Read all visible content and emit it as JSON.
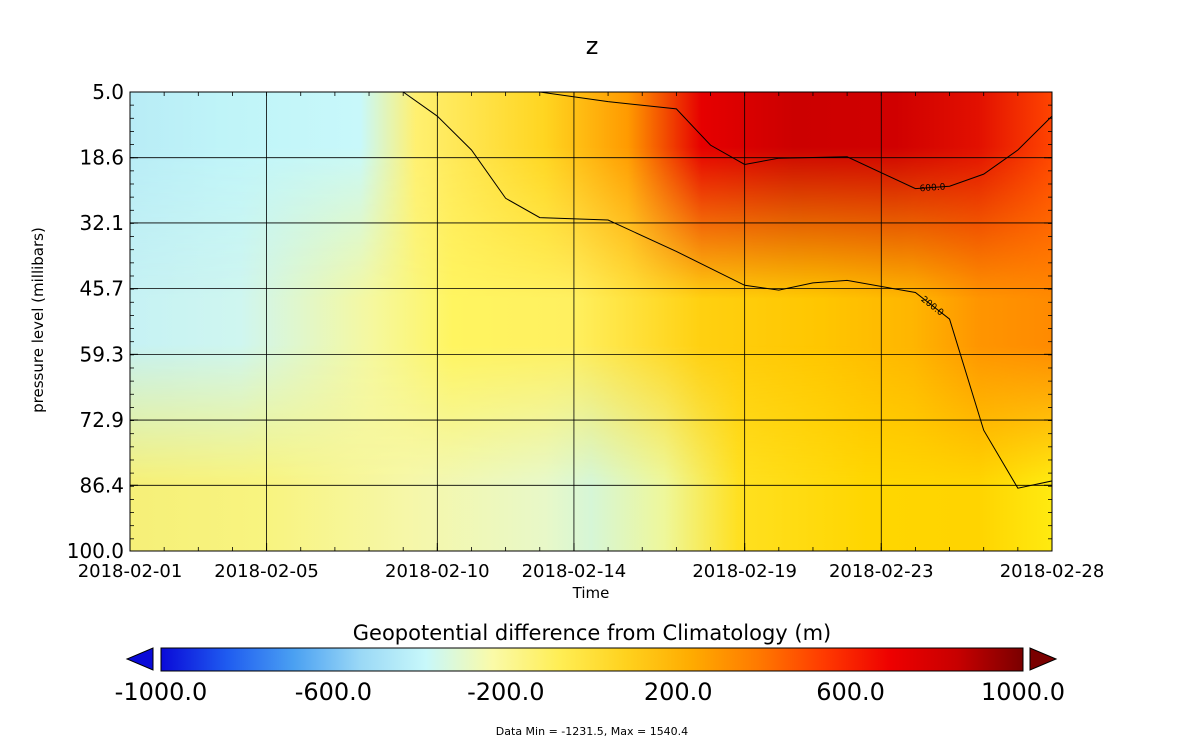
{
  "chart_data": {
    "type": "heatmap",
    "title": "z",
    "xlabel": "Time",
    "ylabel": "pressure level (millibars)",
    "x_ticks": [
      "2018-02-01",
      "2018-02-05",
      "2018-02-10",
      "2018-02-14",
      "2018-02-19",
      "2018-02-23",
      "2018-02-28"
    ],
    "y_ticks": [
      "5.0",
      "18.6",
      "32.1",
      "45.7",
      "59.3",
      "72.9",
      "86.4",
      "100.0"
    ],
    "ylim": [
      5.0,
      100.0
    ],
    "y_inverted": true,
    "grid": true,
    "colorbar": {
      "label": "Geopotential difference from Climatology (m)",
      "ticks": [
        "-1000.0",
        "-600.0",
        "-200.0",
        "200.0",
        "600.0",
        "1000.0"
      ],
      "range": [
        -1000,
        1000
      ],
      "extend": "both",
      "colors": [
        "#0a0ad8",
        "#1f5cf0",
        "#4aa0f2",
        "#9ad8f6",
        "#c8f8fa",
        "#fafaa8",
        "#ffee55",
        "#ffd21e",
        "#ffab00",
        "#ff7a00",
        "#ff3a00",
        "#ee0000",
        "#c80000",
        "#7a0000"
      ]
    },
    "contours": [
      {
        "label": "200.0",
        "points": [
          [
            "2018-02-09",
            5.0
          ],
          [
            "2018-02-10",
            10.0
          ],
          [
            "2018-02-11",
            17.0
          ],
          [
            "2018-02-12",
            27.0
          ],
          [
            "2018-02-13",
            31.0
          ],
          [
            "2018-02-15",
            31.5
          ],
          [
            "2018-02-17",
            38.0
          ],
          [
            "2018-02-19",
            45.0
          ],
          [
            "2018-02-20",
            46.0
          ],
          [
            "2018-02-21",
            44.5
          ],
          [
            "2018-02-22",
            44.0
          ],
          [
            "2018-02-24",
            46.5
          ],
          [
            "2018-02-25",
            52.0
          ],
          [
            "2018-02-26",
            75.0
          ],
          [
            "2018-02-27",
            87.0
          ],
          [
            "2018-02-28",
            85.5
          ],
          [
            "2018-02-28",
            86.0
          ]
        ]
      },
      {
        "label": "600.0",
        "points": [
          [
            "2018-02-13",
            5.0
          ],
          [
            "2018-02-15",
            7.0
          ],
          [
            "2018-02-17",
            8.5
          ],
          [
            "2018-02-18",
            16.0
          ],
          [
            "2018-02-19",
            20.0
          ],
          [
            "2018-02-20",
            18.7
          ],
          [
            "2018-02-22",
            18.4
          ],
          [
            "2018-02-24",
            25.0
          ],
          [
            "2018-02-25",
            24.5
          ],
          [
            "2018-02-26",
            22.0
          ],
          [
            "2018-02-27",
            17.0
          ],
          [
            "2018-02-28",
            10.0
          ],
          [
            "2018-02-28",
            5.0
          ]
        ]
      }
    ],
    "footnote": "Data Min = -1231.5, Max = 1540.4"
  }
}
